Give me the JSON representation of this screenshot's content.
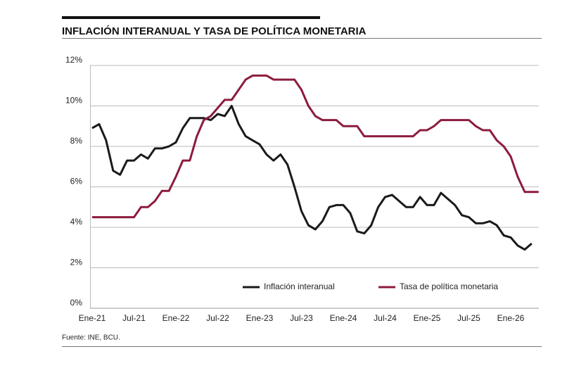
{
  "chart_data": {
    "type": "line",
    "title": "INFLACIÓN INTERANUAL Y TASA DE POLÍTICA MONETARIA",
    "source": "Fuente: INE, BCU.",
    "categories": [
      "Ene-21",
      null,
      null,
      null,
      null,
      null,
      "Jul-21",
      null,
      null,
      null,
      null,
      null,
      "Ene-22",
      null,
      null,
      null,
      null,
      null,
      "Jul-22",
      null,
      null,
      null,
      null,
      null,
      "Ene-23",
      null,
      null,
      null,
      null,
      null,
      "Jul-23",
      null,
      null,
      null,
      null,
      null,
      "Ene-24",
      null,
      null,
      null,
      null,
      null,
      "Jul-24",
      null,
      null,
      null,
      null,
      null,
      "Ene-25",
      null,
      null,
      null,
      null,
      null,
      "Jul-25",
      null,
      null,
      null,
      null,
      null,
      "Ene-26",
      null,
      null,
      null,
      null
    ],
    "series": [
      {
        "name": "Inflación interanual",
        "color": "#1a1a1a",
        "values": [
          8.9,
          9.1,
          8.3,
          6.8,
          6.6,
          7.3,
          7.3,
          7.6,
          7.4,
          7.9,
          7.9,
          8.0,
          8.2,
          8.9,
          9.4,
          9.4,
          9.4,
          9.3,
          9.6,
          9.5,
          10.0,
          9.1,
          8.5,
          8.3,
          8.1,
          7.6,
          7.3,
          7.6,
          7.1,
          6.0,
          4.8,
          4.1,
          3.9,
          4.3,
          5.0,
          5.1,
          5.1,
          4.7,
          3.8,
          3.7,
          4.1,
          5.0,
          5.5,
          5.6,
          5.3,
          5.0,
          5.0,
          5.5,
          5.1,
          5.1,
          5.7,
          5.4,
          5.1,
          4.6,
          4.5,
          4.2,
          4.2,
          4.3,
          4.1,
          3.6,
          3.5,
          3.1,
          2.9,
          3.2,
          null
        ]
      },
      {
        "name": "Tasa de política monetaria",
        "color": "#8c1c3c",
        "values": [
          4.5,
          4.5,
          4.5,
          4.5,
          4.5,
          4.5,
          4.5,
          5.0,
          5.0,
          5.3,
          5.8,
          5.8,
          6.5,
          7.3,
          7.3,
          8.5,
          9.3,
          9.5,
          9.9,
          10.3,
          10.3,
          10.8,
          11.3,
          11.5,
          11.5,
          11.5,
          11.3,
          11.3,
          11.3,
          11.3,
          10.8,
          10.0,
          9.5,
          9.3,
          9.3,
          9.3,
          9.0,
          9.0,
          9.0,
          8.5,
          8.5,
          8.5,
          8.5,
          8.5,
          8.5,
          8.5,
          8.5,
          8.8,
          8.8,
          9.0,
          9.3,
          9.3,
          9.3,
          9.3,
          9.3,
          9.0,
          8.8,
          8.8,
          8.3,
          8.0,
          7.5,
          6.5,
          5.75,
          5.75,
          5.75
        ]
      }
    ],
    "ylim": [
      0,
      12
    ],
    "yticks": [
      {
        "value": 0,
        "label": "0%"
      },
      {
        "value": 2,
        "label": "2%"
      },
      {
        "value": 4,
        "label": "4%"
      },
      {
        "value": 6,
        "label": "6%"
      },
      {
        "value": 8,
        "label": "8%"
      },
      {
        "value": 10,
        "label": "10%"
      },
      {
        "value": 12,
        "label": "12%"
      }
    ],
    "grid": true
  }
}
